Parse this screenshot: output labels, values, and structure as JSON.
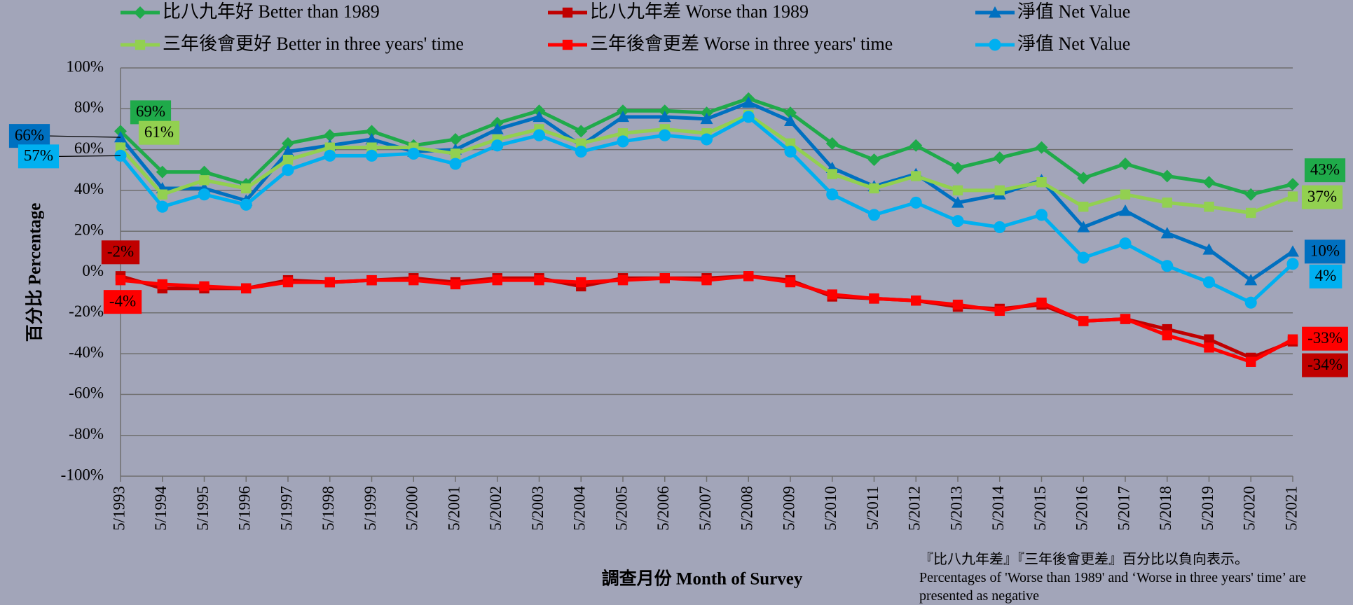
{
  "chart_data": {
    "type": "line",
    "xlabel": "調查月份 Month of Survey",
    "ylabel": "百分比 Percentage",
    "annotations": [
      "『比八九年差』『三年後會更差』百分比以負向表示。",
      "Percentages of 'Worse than 1989' and ‘Worse in three years' time’ are presented as negative"
    ],
    "categories": [
      "5/1993",
      "5/1994",
      "5/1995",
      "5/1996",
      "5/1997",
      "5/1998",
      "5/1999",
      "5/2000",
      "5/2001",
      "5/2002",
      "5/2003",
      "5/2004",
      "5/2005",
      "5/2006",
      "5/2007",
      "5/2008",
      "5/2009",
      "5/2010",
      "5/2011",
      "5/2012",
      "5/2013",
      "5/2014",
      "5/2015",
      "5/2016",
      "5/2017",
      "5/2018",
      "5/2019",
      "5/2020",
      "5/2021"
    ],
    "ylim": [
      -100,
      100
    ],
    "yticks": [
      {
        "value": -100,
        "label": "-100%"
      },
      {
        "value": -80,
        "label": "-80%"
      },
      {
        "value": -60,
        "label": "-60%"
      },
      {
        "value": -40,
        "label": "-40%"
      },
      {
        "value": -20,
        "label": "-20%"
      },
      {
        "value": 0,
        "label": "0%"
      },
      {
        "value": 20,
        "label": "20%"
      },
      {
        "value": 40,
        "label": "40%"
      },
      {
        "value": 60,
        "label": "60%"
      },
      {
        "value": 80,
        "label": "80%"
      },
      {
        "value": 100,
        "label": "100%"
      }
    ],
    "grid": true,
    "series": [
      {
        "name": "比八九年好 Better than 1989",
        "color": "#1faa4a",
        "marker": "diamond",
        "values": [
          69,
          49,
          49,
          43,
          63,
          67,
          69,
          62,
          65,
          73,
          79,
          69,
          79,
          79,
          78,
          85,
          78,
          63,
          55,
          62,
          51,
          56,
          61,
          46,
          53,
          47,
          44,
          38,
          43
        ],
        "value_labels": [
          "69%",
          null,
          null,
          null,
          null,
          null,
          null,
          null,
          null,
          null,
          null,
          null,
          null,
          null,
          null,
          null,
          null,
          null,
          null,
          null,
          null,
          null,
          null,
          null,
          null,
          null,
          null,
          null,
          "43%"
        ]
      },
      {
        "name": "比八九年差 Worse than 1989",
        "color": "#c00000",
        "marker": "square",
        "values": [
          -2,
          -8,
          -8,
          -8,
          -4,
          -5,
          -4,
          -3,
          -5,
          -3,
          -3,
          -7,
          -3,
          -3,
          -3,
          -2,
          -4,
          -12,
          -13,
          -14,
          -17,
          -18,
          -16,
          -24,
          -23,
          -28,
          -33,
          -42,
          -34
        ],
        "value_labels": [
          "-2%",
          null,
          null,
          null,
          null,
          null,
          null,
          null,
          null,
          null,
          null,
          null,
          null,
          null,
          null,
          null,
          null,
          null,
          null,
          null,
          null,
          null,
          null,
          null,
          null,
          null,
          null,
          null,
          "-34%"
        ]
      },
      {
        "name": "淨值 Net Value",
        "color": "#0070c0",
        "marker": "triangle",
        "values": [
          66,
          41,
          41,
          35,
          59,
          62,
          65,
          59,
          60,
          70,
          76,
          62,
          76,
          76,
          75,
          83,
          74,
          51,
          42,
          48,
          34,
          38,
          45,
          22,
          30,
          19,
          11,
          -4,
          10
        ],
        "value_labels": [
          "66%",
          null,
          null,
          null,
          null,
          null,
          null,
          null,
          null,
          null,
          null,
          null,
          null,
          null,
          null,
          null,
          null,
          null,
          null,
          null,
          null,
          null,
          null,
          null,
          null,
          null,
          null,
          null,
          "10%"
        ]
      },
      {
        "name": "三年後會更好 Better in three years' time",
        "color": "#92d050",
        "marker": "square",
        "values": [
          61,
          38,
          45,
          41,
          55,
          61,
          61,
          61,
          58,
          65,
          70,
          63,
          68,
          70,
          68,
          77,
          63,
          48,
          41,
          47,
          40,
          40,
          44,
          32,
          38,
          34,
          32,
          29,
          37
        ],
        "value_labels": [
          "61%",
          null,
          null,
          null,
          null,
          null,
          null,
          null,
          null,
          null,
          null,
          null,
          null,
          null,
          null,
          null,
          null,
          null,
          null,
          null,
          null,
          null,
          null,
          null,
          null,
          null,
          null,
          null,
          "37%"
        ]
      },
      {
        "name": "三年後會更差 Worse in three years' time",
        "color": "#ff0000",
        "marker": "square",
        "values": [
          -4,
          -6,
          -7,
          -8,
          -5,
          -5,
          -4,
          -4,
          -6,
          -4,
          -4,
          -5,
          -4,
          -3,
          -4,
          -2,
          -5,
          -11,
          -13,
          -14,
          -16,
          -19,
          -15,
          -24,
          -23,
          -31,
          -37,
          -44,
          -33
        ],
        "value_labels": [
          "-4%",
          null,
          null,
          null,
          null,
          null,
          null,
          null,
          null,
          null,
          null,
          null,
          null,
          null,
          null,
          null,
          null,
          null,
          null,
          null,
          null,
          null,
          null,
          null,
          null,
          null,
          null,
          null,
          "-33%"
        ]
      },
      {
        "name": "淨值 Net Value",
        "color": "#00b0f0",
        "marker": "circle",
        "values": [
          57,
          32,
          38,
          33,
          50,
          57,
          57,
          58,
          53,
          62,
          67,
          59,
          64,
          67,
          65,
          76,
          59,
          38,
          28,
          34,
          25,
          22,
          28,
          7,
          14,
          3,
          -5,
          -15,
          4
        ],
        "value_labels": [
          "57%",
          null,
          null,
          null,
          null,
          null,
          null,
          null,
          null,
          null,
          null,
          null,
          null,
          null,
          null,
          null,
          null,
          null,
          null,
          null,
          null,
          null,
          null,
          null,
          null,
          null,
          null,
          null,
          "4%"
        ]
      }
    ]
  }
}
